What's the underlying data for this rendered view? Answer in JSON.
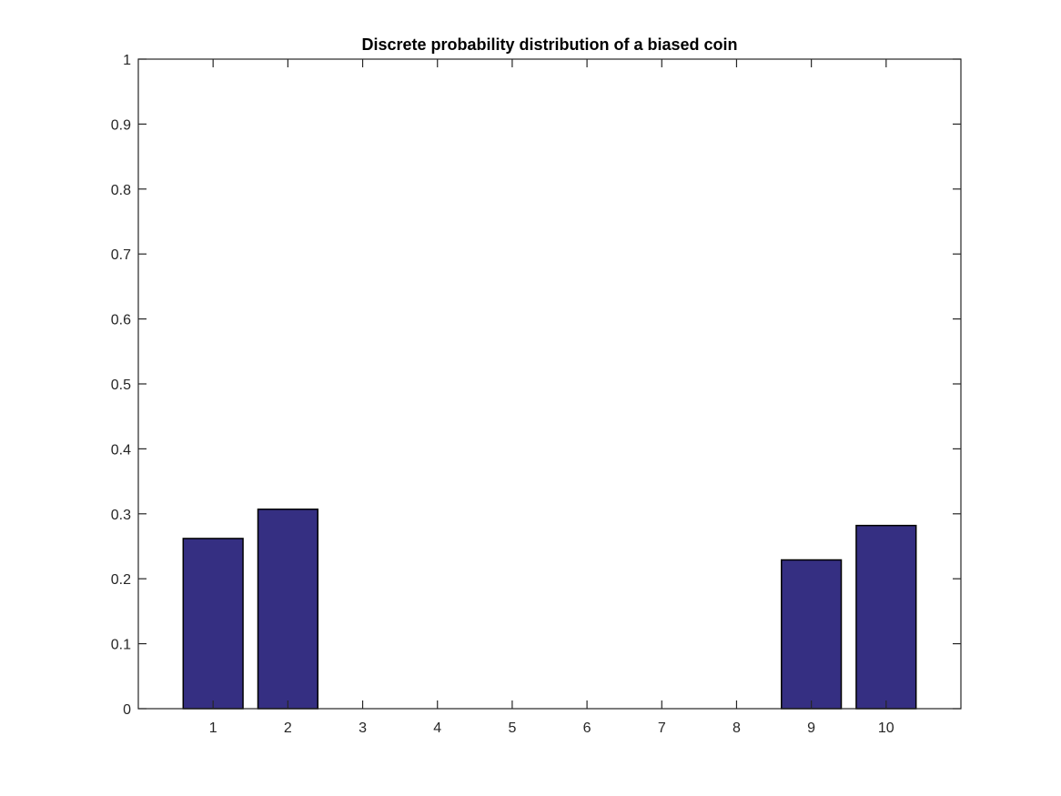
{
  "chart_data": {
    "type": "bar",
    "title": "Discrete probability distribution of a biased coin",
    "xlabel": "",
    "ylabel": "",
    "categories": [
      "1",
      "2",
      "3",
      "4",
      "5",
      "6",
      "7",
      "8",
      "9",
      "10"
    ],
    "x": [
      1,
      2,
      3,
      4,
      5,
      6,
      7,
      8,
      9,
      10
    ],
    "values": [
      0.262,
      0.307,
      0,
      0,
      0,
      0,
      0,
      0,
      0.229,
      0.282
    ],
    "xlim": [
      0,
      11
    ],
    "ylim": [
      0,
      1
    ],
    "yticks": [
      0,
      0.1,
      0.2,
      0.3,
      0.4,
      0.5,
      0.6,
      0.7,
      0.8,
      0.9,
      1
    ],
    "ytick_labels": [
      "0",
      "0.1",
      "0.2",
      "0.3",
      "0.4",
      "0.5",
      "0.6",
      "0.7",
      "0.8",
      "0.9",
      "1"
    ],
    "bar_width": 0.8,
    "bar_color": "#352f82",
    "edge_color": "#000000",
    "grid": false,
    "box": true
  }
}
